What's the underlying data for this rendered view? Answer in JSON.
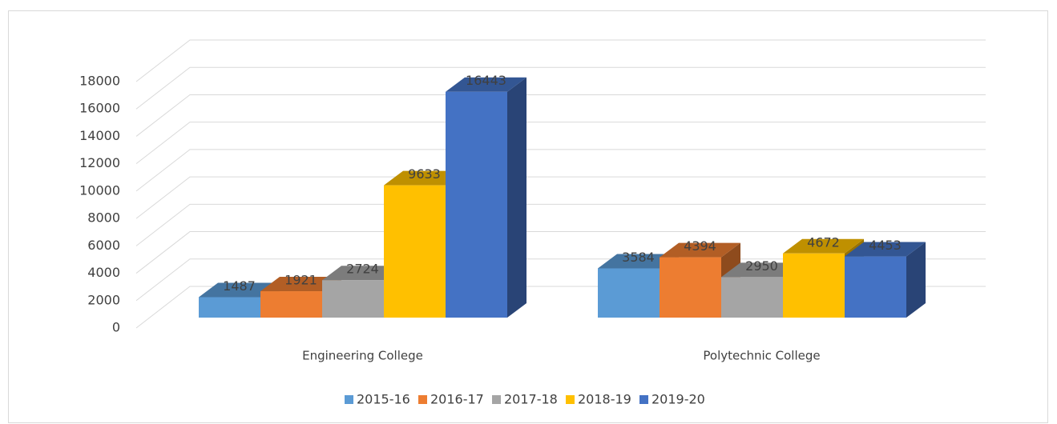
{
  "chart_data": {
    "type": "bar3d",
    "categories": [
      "Engineering College",
      "Polytechnic College"
    ],
    "series": [
      {
        "name": "2015-16",
        "color": "#5b9bd5",
        "values": [
          1487,
          3584
        ]
      },
      {
        "name": "2016-17",
        "color": "#ed7d31",
        "values": [
          1921,
          4394
        ]
      },
      {
        "name": "2017-18",
        "color": "#a5a5a5",
        "values": [
          2724,
          2950
        ]
      },
      {
        "name": "2018-19",
        "color": "#ffc000",
        "values": [
          9633,
          4672
        ]
      },
      {
        "name": "2019-20",
        "color": "#4472c4",
        "values": [
          16443,
          4453
        ]
      }
    ],
    "ylim": [
      0,
      18000
    ],
    "yticks": [
      0,
      2000,
      4000,
      6000,
      8000,
      10000,
      12000,
      14000,
      16000,
      18000
    ],
    "grid": true,
    "legend": "bottom"
  }
}
